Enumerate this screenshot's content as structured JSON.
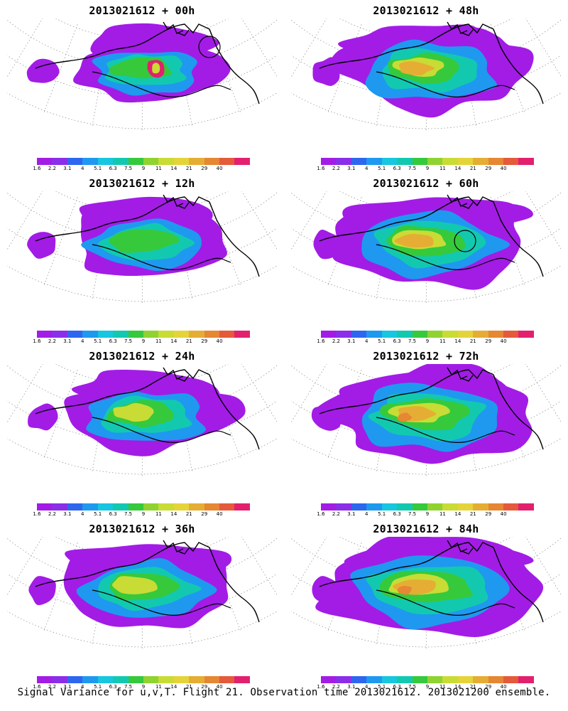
{
  "colorbar": {
    "colors": [
      "#a21ce6",
      "#8a2ee9",
      "#2f66f0",
      "#1e99ef",
      "#17c6df",
      "#12c9b0",
      "#36c93c",
      "#8fd331",
      "#c8dc35",
      "#e4d43a",
      "#e6ad34",
      "#e58733",
      "#e45a3b",
      "#e2206e"
    ],
    "labels": [
      "1.6",
      "2.2",
      "3.1",
      "4",
      "5.1",
      "6.3",
      "7.5",
      "9",
      "11",
      "14",
      "21",
      "29",
      "40"
    ]
  },
  "panels": [
    {
      "title": "2013021612 + 00h",
      "stage": 0
    },
    {
      "title": "2013021612 + 48h",
      "stage": 4
    },
    {
      "title": "2013021612 + 12h",
      "stage": 1
    },
    {
      "title": "2013021612 + 60h",
      "stage": 5
    },
    {
      "title": "2013021612 + 24h",
      "stage": 2
    },
    {
      "title": "2013021612 + 72h",
      "stage": 6
    },
    {
      "title": "2013021612 + 36h",
      "stage": 3
    },
    {
      "title": "2013021612 + 84h",
      "stage": 7
    }
  ],
  "footer": "Signal Variance for u,v,T. Flight 21. Observation time 2013021612. 2013021200 ensemble."
}
